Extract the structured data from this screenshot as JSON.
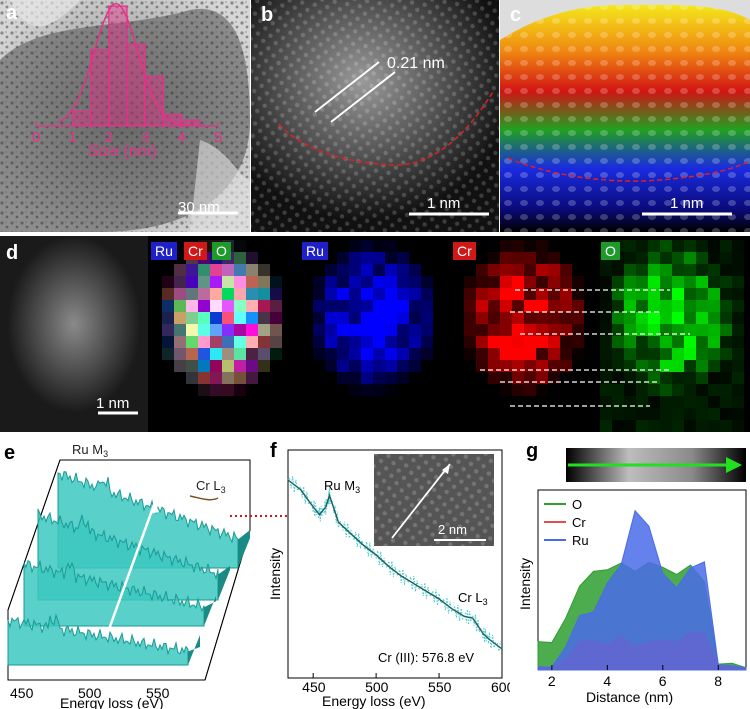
{
  "figure": {
    "panel_a": {
      "label": "a",
      "scale_bar": "30 nm",
      "chart_data": {
        "type": "bar",
        "title": "",
        "xlabel": "Size (nm)",
        "ylabel": "",
        "x_ticks": [
          "0",
          "1",
          "2",
          "3",
          "4",
          "5"
        ],
        "xlim": [
          0,
          5
        ],
        "bin_edges": [
          1.0,
          1.5,
          2.0,
          2.5,
          3.0,
          3.5,
          4.0,
          4.5
        ],
        "values": [
          5,
          26,
          41,
          28,
          17,
          4,
          2
        ],
        "fit": "gaussian",
        "color": "#e8308a"
      }
    },
    "panel_b": {
      "label": "b",
      "lattice_label": "0.21 nm",
      "scale_bar": "1 nm"
    },
    "panel_c": {
      "label": "c",
      "scale_bar": "1 nm"
    },
    "panel_d": {
      "label": "d",
      "scale_bar": "1 nm",
      "tags": {
        "ru_merged": "Ru",
        "cr_merged": "Cr",
        "o_merged": "O",
        "ru": "Ru",
        "cr": "Cr",
        "o": "O"
      }
    },
    "panel_e": {
      "label": "e",
      "ru_edge": "Ru M",
      "ru_edge_sub": "3",
      "cr_edge": "Cr L",
      "cr_edge_sub": "3",
      "xlabel": "Energy loss (eV)",
      "x_ticks": [
        "450",
        "500",
        "550"
      ]
    },
    "panel_f": {
      "label": "f",
      "ylabel": "Intensity",
      "xlabel": "Energy loss (eV)",
      "x_ticks": [
        "450",
        "500",
        "550",
        "600"
      ],
      "ru_edge": "Ru M",
      "ru_edge_sub": "3",
      "cr_edge": "Cr L",
      "cr_edge_sub": "3",
      "annotation": "Cr (III): 576.8 eV",
      "inset_scale_bar": "2 nm",
      "chart_data": {
        "type": "line",
        "xlim": [
          430,
          600
        ],
        "x": [
          430,
          440,
          450,
          455,
          460,
          463,
          470,
          480,
          490,
          500,
          510,
          520,
          530,
          540,
          550,
          560,
          570,
          576.8,
          585,
          590,
          600
        ],
        "y": [
          1.0,
          0.95,
          0.86,
          0.82,
          0.86,
          0.92,
          0.78,
          0.72,
          0.66,
          0.61,
          0.55,
          0.5,
          0.46,
          0.42,
          0.38,
          0.33,
          0.29,
          0.28,
          0.2,
          0.17,
          0.12
        ],
        "series_name": "EELS spectrum"
      }
    },
    "panel_g": {
      "label": "g",
      "ylabel": "Intensity",
      "xlabel": "Distance (nm)",
      "x_ticks": [
        "2",
        "4",
        "6",
        "8"
      ],
      "chart_data": {
        "type": "area",
        "xlim": [
          1.5,
          9
        ],
        "x": [
          1.5,
          2.0,
          2.5,
          3.0,
          3.5,
          4.0,
          4.5,
          5.0,
          5.5,
          6.0,
          6.5,
          7.0,
          7.5,
          8.0,
          8.5,
          9.0
        ],
        "series": [
          {
            "name": "O",
            "color": "#2e9e2e",
            "values": [
              0.15,
              0.18,
              0.3,
              0.48,
              0.6,
              0.58,
              0.62,
              0.6,
              0.62,
              0.6,
              0.58,
              0.6,
              0.52,
              0.05,
              0.02,
              0.02
            ]
          },
          {
            "name": "Cr",
            "color": "#e84c4c",
            "values": [
              0.0,
              0.02,
              0.08,
              0.15,
              0.18,
              0.16,
              0.18,
              0.15,
              0.17,
              0.16,
              0.18,
              0.22,
              0.2,
              0.05,
              0.01,
              0.0
            ]
          },
          {
            "name": "Ru",
            "color": "#4a6be8",
            "values": [
              0.0,
              0.02,
              0.15,
              0.3,
              0.35,
              0.52,
              0.6,
              0.95,
              0.85,
              0.55,
              0.5,
              0.6,
              0.62,
              0.05,
              0.02,
              0.0
            ]
          }
        ]
      }
    }
  }
}
